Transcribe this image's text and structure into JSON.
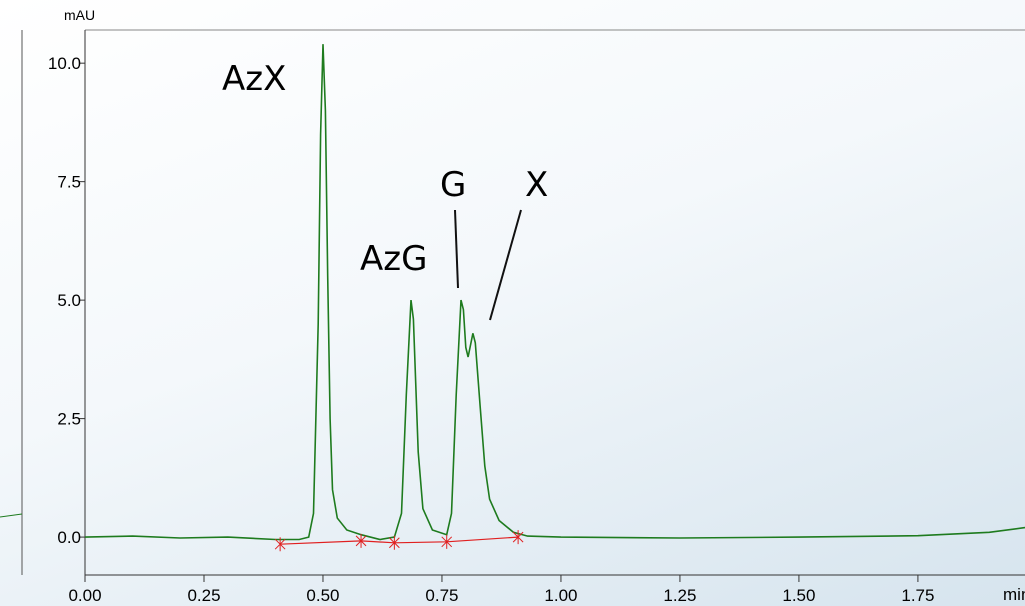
{
  "chart_data": {
    "type": "line",
    "y_label": "mAU",
    "x_label": "min",
    "xlim": [
      0,
      1.975
    ],
    "ylim": [
      -0.8,
      10.7
    ],
    "xticks": [
      {
        "value": 0,
        "label": "0.00"
      },
      {
        "value": 0.25,
        "label": "0.25"
      },
      {
        "value": 0.5,
        "label": "0.50"
      },
      {
        "value": 0.75,
        "label": "0.75"
      },
      {
        "value": 1,
        "label": "1.00"
      },
      {
        "value": 1.25,
        "label": "1.25"
      },
      {
        "value": 1.5,
        "label": "1.50"
      },
      {
        "value": 1.75,
        "label": "1.75"
      }
    ],
    "yticks": [
      {
        "value": 0,
        "label": "0.0"
      },
      2.5,
      {
        "value": 5,
        "label": "5.0"
      },
      7.5,
      {
        "value": 10,
        "label": "10.0"
      }
    ],
    "series": [
      {
        "color": "#1e7b1e",
        "x": [
          0,
          0.1,
          0.2,
          0.3,
          0.4,
          0.45,
          0.47,
          0.48,
          0.49,
          0.495,
          0.5,
          0.505,
          0.51,
          0.515,
          0.52,
          0.53,
          0.55,
          0.58,
          0.62,
          0.65,
          0.665,
          0.675,
          0.685,
          0.69,
          0.695,
          0.7,
          0.71,
          0.73,
          0.76,
          0.77,
          0.78,
          0.79,
          0.795,
          0.8,
          0.805,
          0.815,
          0.82,
          0.83,
          0.84,
          0.85,
          0.87,
          0.9,
          0.93,
          1,
          1.25,
          1.5,
          1.75,
          1.9,
          1.975
        ],
        "values": [
          0,
          0.02,
          -0.02,
          0,
          -0.05,
          -0.05,
          0,
          0.5,
          4.5,
          8.5,
          10.4,
          9,
          5.5,
          2.5,
          1,
          0.4,
          0.15,
          0.05,
          -0.05,
          0,
          0.5,
          3,
          5,
          4.6,
          3.2,
          1.8,
          0.6,
          0.15,
          0.05,
          0.5,
          3,
          5,
          4.8,
          4,
          3.8,
          4.3,
          4.1,
          2.8,
          1.5,
          0.8,
          0.35,
          0.1,
          0.02,
          0,
          -0.02,
          0,
          0.03,
          0.1,
          0.2
        ]
      },
      {
        "color": "#e02020",
        "markers": true,
        "x": [
          0.41,
          0.58,
          0.65,
          0.76,
          0.91
        ],
        "values": [
          -0.15,
          -0.08,
          -0.12,
          -0.1,
          0
        ]
      }
    ],
    "annotations": [
      "AzX",
      "AzG",
      "G",
      "X"
    ]
  }
}
